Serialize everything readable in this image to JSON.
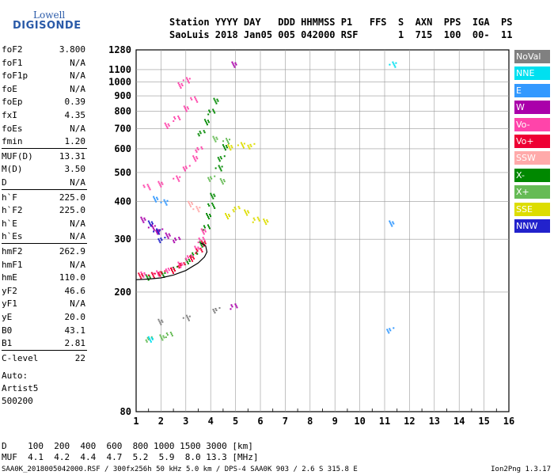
{
  "logo": {
    "line1": "Lowell",
    "line2": "DIGISONDE"
  },
  "header": {
    "line1": "Station YYYY DAY   DDD HHMMSS P1   FFS  S  AXN  PPS  IGA  PS",
    "line2": "SaoLuis 2018 Jan05 005 042000 RSF       1  715  100  00-  11"
  },
  "params": [
    {
      "name": "foF2",
      "value": "3.800"
    },
    {
      "name": "foF1",
      "value": "N/A"
    },
    {
      "name": "foF1p",
      "value": "N/A"
    },
    {
      "name": "foE",
      "value": "N/A"
    },
    {
      "name": "foEp",
      "value": "0.39"
    },
    {
      "name": "fxI",
      "value": "4.35"
    },
    {
      "name": "foEs",
      "value": "N/A"
    },
    {
      "name": "fmin",
      "value": "1.20"
    },
    {
      "name": "MUF(D)",
      "value": "13.31"
    },
    {
      "name": "M(D)",
      "value": "3.50"
    },
    {
      "name": "D",
      "value": "N/A"
    },
    {
      "name": "h`F",
      "value": "225.0"
    },
    {
      "name": "h`F2",
      "value": "225.0"
    },
    {
      "name": "h`E",
      "value": "N/A"
    },
    {
      "name": "h`Es",
      "value": "N/A"
    },
    {
      "name": "hmF2",
      "value": "262.9"
    },
    {
      "name": "hmF1",
      "value": "N/A"
    },
    {
      "name": "hmE",
      "value": "110.0"
    },
    {
      "name": "yF2",
      "value": "46.6"
    },
    {
      "name": "yF1",
      "value": "N/A"
    },
    {
      "name": "yE",
      "value": "20.0"
    },
    {
      "name": "B0",
      "value": "43.1"
    },
    {
      "name": "B1",
      "value": "2.81"
    },
    {
      "name": "C-level",
      "value": "22"
    }
  ],
  "auto": {
    "line1": "Auto:",
    "line2": "Artist5",
    "line3": "500200"
  },
  "legend": [
    {
      "label": "NoVal",
      "color": "#808080"
    },
    {
      "label": "NNE",
      "color": "#00e0f0"
    },
    {
      "label": "E",
      "color": "#3399ff"
    },
    {
      "label": "W",
      "color": "#aa00aa"
    },
    {
      "label": "Vo-",
      "color": "#ff44aa"
    },
    {
      "label": "Vo+",
      "color": "#ee0033"
    },
    {
      "label": "SSW",
      "color": "#ffaaaa"
    },
    {
      "label": "X-",
      "color": "#008800"
    },
    {
      "label": "X+",
      "color": "#66bb55"
    },
    {
      "label": "SSE",
      "color": "#dddd00"
    },
    {
      "label": "NNW",
      "color": "#2222cc"
    }
  ],
  "bottom": {
    "line1": "D    100  200  400  600  800 1000 1500 3000 [km]",
    "line2": "MUF  4.1  4.2  4.4  4.7  5.2  5.9  8.0 13.3 [MHz]"
  },
  "footer": {
    "left": "SAA0K_2018005042000.RSF / 300fx256h 50 kHz 5.0 km / DPS-4 SAA0K 903 / 2.6 S 315.8 E",
    "right": "Ion2Png 1.3.17"
  },
  "chart_data": {
    "type": "scatter",
    "title": "",
    "xlabel": "",
    "ylabel": "",
    "xlim": [
      1,
      16
    ],
    "ylim": [
      80,
      1280
    ],
    "x_ticks": [
      1,
      2,
      3,
      4,
      5,
      6,
      7,
      8,
      9,
      10,
      11,
      12,
      13,
      14,
      15,
      16
    ],
    "y_ticks": [
      80,
      200,
      300,
      400,
      500,
      600,
      700,
      800,
      900,
      1000,
      1100,
      1280
    ],
    "y_scale": "log",
    "grid": true,
    "series": [
      {
        "name": "X-",
        "color": "#008800",
        "points": [
          [
            1.5,
            225
          ],
          [
            2.0,
            230
          ],
          [
            2.5,
            240
          ],
          [
            3.0,
            255
          ],
          [
            3.3,
            268
          ],
          [
            3.6,
            290
          ],
          [
            3.8,
            330
          ],
          [
            3.9,
            360
          ],
          [
            4.0,
            390
          ],
          [
            4.1,
            420
          ],
          [
            4.3,
            520
          ],
          [
            4.4,
            560
          ],
          [
            4.5,
            610
          ],
          [
            3.6,
            680
          ],
          [
            3.8,
            740
          ],
          [
            4.0,
            800
          ],
          [
            4.2,
            870
          ]
        ]
      },
      {
        "name": "Vo-",
        "color": "#ff44aa",
        "points": [
          [
            1.3,
            230
          ],
          [
            1.8,
            232
          ],
          [
            2.3,
            238
          ],
          [
            2.7,
            248
          ],
          [
            3.1,
            262
          ],
          [
            3.4,
            280
          ],
          [
            3.6,
            300
          ],
          [
            3.7,
            320
          ],
          [
            1.4,
            450
          ],
          [
            2.0,
            460
          ],
          [
            2.6,
            480
          ],
          [
            3.0,
            520
          ],
          [
            3.3,
            560
          ],
          [
            3.5,
            600
          ],
          [
            2.2,
            720
          ],
          [
            2.6,
            760
          ],
          [
            3.0,
            820
          ],
          [
            3.3,
            880
          ],
          [
            2.8,
            980
          ],
          [
            3.0,
            1020
          ]
        ]
      },
      {
        "name": "Vo+",
        "color": "#ee0033",
        "points": [
          [
            1.2,
            228
          ],
          [
            1.6,
            229
          ],
          [
            2.0,
            232
          ],
          [
            2.4,
            237
          ],
          [
            2.8,
            247
          ],
          [
            3.2,
            260
          ],
          [
            3.5,
            276
          ],
          [
            3.7,
            292
          ]
        ]
      },
      {
        "name": "SSE",
        "color": "#dddd00",
        "points": [
          [
            4.8,
            610
          ],
          [
            5.2,
            620
          ],
          [
            5.6,
            615
          ],
          [
            4.6,
            360
          ],
          [
            5.0,
            380
          ],
          [
            5.4,
            370
          ],
          [
            5.8,
            350
          ],
          [
            6.2,
            345
          ]
        ]
      },
      {
        "name": "W",
        "color": "#aa00aa",
        "points": [
          [
            1.3,
            350
          ],
          [
            1.6,
            330
          ],
          [
            1.9,
            320
          ],
          [
            2.2,
            310
          ],
          [
            2.6,
            300
          ],
          [
            4.9,
            1150
          ],
          [
            4.9,
            180
          ]
        ]
      },
      {
        "name": "X+",
        "color": "#66bb55",
        "points": [
          [
            4.2,
            650
          ],
          [
            4.6,
            640
          ],
          [
            4.0,
            480
          ],
          [
            4.4,
            470
          ],
          [
            1.5,
            140
          ],
          [
            2.0,
            142
          ],
          [
            2.3,
            145
          ]
        ]
      },
      {
        "name": "E",
        "color": "#3399ff",
        "points": [
          [
            1.8,
            410
          ],
          [
            2.1,
            400
          ],
          [
            11.2,
            150
          ],
          [
            11.2,
            340
          ]
        ]
      },
      {
        "name": "NNE",
        "color": "#00e0f0",
        "points": [
          [
            1.6,
            140
          ],
          [
            11.3,
            1150
          ]
        ]
      },
      {
        "name": "NNW",
        "color": "#2222cc",
        "points": [
          [
            1.6,
            340
          ],
          [
            1.8,
            320
          ],
          [
            2.0,
            300
          ]
        ]
      },
      {
        "name": "SSW",
        "color": "#ffaaaa",
        "points": [
          [
            3.2,
            395
          ],
          [
            3.4,
            380
          ]
        ]
      },
      {
        "name": "NoVal",
        "color": "#808080",
        "points": [
          [
            2.0,
            160
          ],
          [
            3.0,
            165
          ],
          [
            4.2,
            175
          ]
        ]
      }
    ],
    "trace_curve": [
      [
        1.0,
        220
      ],
      [
        1.5,
        221
      ],
      [
        2.0,
        223
      ],
      [
        2.5,
        228
      ],
      [
        3.0,
        236
      ],
      [
        3.5,
        250
      ],
      [
        3.75,
        262
      ],
      [
        3.85,
        272
      ],
      [
        3.8,
        285
      ],
      [
        3.6,
        292
      ]
    ]
  }
}
